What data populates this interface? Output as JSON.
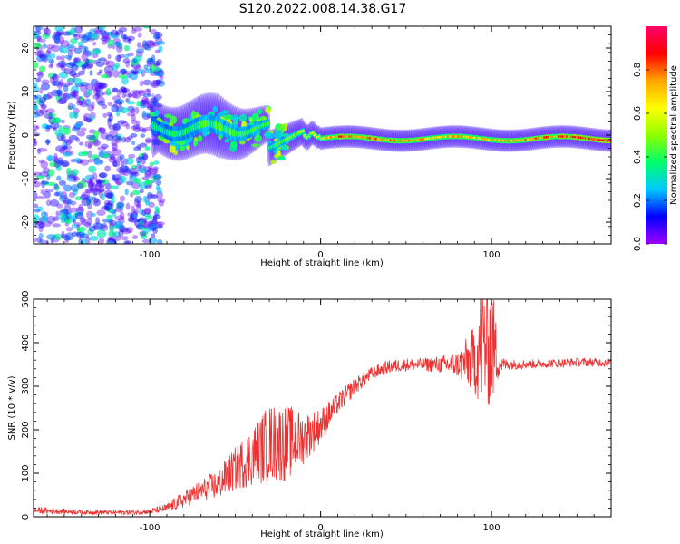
{
  "page": {
    "title": "S120.2022.008.14.38.G17"
  },
  "colorbar": {
    "label": "Normalized spectral amplitude",
    "ticks": [
      "0.0",
      "0.2",
      "0.4",
      "0.6",
      "0.8"
    ],
    "colors": [
      "#a000ff",
      "#0000ff",
      "#00c8ff",
      "#00ff6a",
      "#90ff00",
      "#ffff00",
      "#ffa500",
      "#ff0000",
      "#ff006a"
    ]
  },
  "chart_data": [
    {
      "type": "heatmap",
      "title": "S120.2022.008.14.38.G17",
      "xlabel": "Height of straight line (km)",
      "ylabel": "Frequency (Hz)",
      "xlim": [
        -168,
        170
      ],
      "ylim": [
        -25,
        25
      ],
      "xticks": [
        -100,
        0,
        100
      ],
      "xtick_labels": [
        "-100",
        "0",
        "100"
      ],
      "yticks": [
        -20,
        -10,
        0,
        10,
        20
      ],
      "ytick_labels": [
        "-20",
        "-10",
        "0",
        "10",
        "20"
      ],
      "colormap": "hsv-like (purple to red)",
      "vrange": [
        0.0,
        1.0
      ],
      "description_points": [
        {
          "x": -160,
          "y_spread": 25,
          "amplitude": 0.1
        },
        {
          "x": -95,
          "y_spread": 3,
          "amplitude": 0.35
        },
        {
          "x": -60,
          "y_spread": 4,
          "amplitude": 0.45
        },
        {
          "x": -30,
          "y_spread": 2,
          "amplitude": 0.4
        },
        {
          "x": 0,
          "y_spread": 1,
          "amplitude": 0.6
        },
        {
          "x": 10,
          "y_spread": 1,
          "amplitude": 0.85
        },
        {
          "x": 50,
          "y_spread": 1,
          "amplitude": 0.75
        },
        {
          "x": 100,
          "y_spread": 1,
          "amplitude": 0.7
        },
        {
          "x": 165,
          "y_spread": 1,
          "amplitude": 0.9
        }
      ]
    },
    {
      "type": "line",
      "xlabel": "Height of straight line (km)",
      "ylabel": "SNR (10 * v/v)",
      "xlim": [
        -168,
        170
      ],
      "ylim": [
        0,
        500
      ],
      "xticks": [
        -100,
        0,
        100
      ],
      "xtick_labels": [
        "-100",
        "0",
        "100"
      ],
      "yticks": [
        0,
        100,
        200,
        300,
        400,
        500
      ],
      "ytick_labels": [
        "0",
        "100",
        "200",
        "300",
        "400",
        "500"
      ],
      "color": "#f03030",
      "series": [
        {
          "x": [
            -168,
            -150,
            -130,
            -110,
            -100,
            -90,
            -80,
            -70,
            -60,
            -50,
            -40,
            -30,
            -20,
            -10,
            0,
            10,
            20,
            30,
            40,
            50,
            60,
            70,
            80,
            90,
            95,
            100,
            105,
            110,
            130,
            150,
            170
          ],
          "values": [
            15,
            12,
            10,
            10,
            12,
            20,
            40,
            60,
            75,
            110,
            140,
            170,
            170,
            180,
            210,
            260,
            300,
            330,
            345,
            350,
            350,
            350,
            350,
            360,
            400,
            400,
            350,
            350,
            352,
            355,
            355
          ],
          "spread": [
            8,
            6,
            5,
            5,
            6,
            10,
            20,
            25,
            35,
            50,
            70,
            90,
            90,
            60,
            40,
            25,
            20,
            15,
            15,
            15,
            15,
            20,
            30,
            80,
            160,
            150,
            20,
            12,
            10,
            10,
            10
          ]
        }
      ]
    }
  ]
}
